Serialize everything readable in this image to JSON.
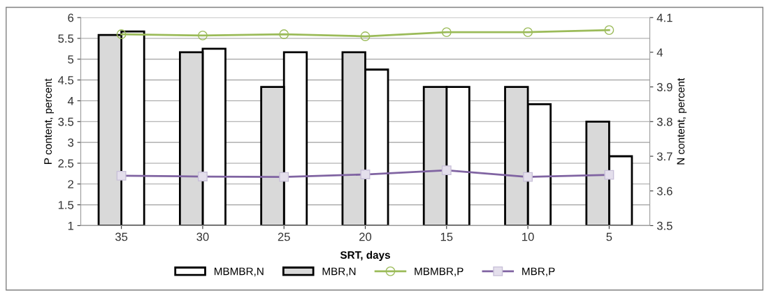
{
  "chart_data": {
    "type": "bar",
    "xlabel": "SRT, days",
    "ylabel": "P content, percent",
    "y2label": "N content, percent",
    "categories": [
      "35",
      "30",
      "25",
      "20",
      "15",
      "10",
      "5"
    ],
    "series": [
      {
        "name": "MBMBR,N",
        "axis": "y2",
        "color": "#ffffff",
        "values": [
          4.06,
          4.01,
          4.0,
          3.95,
          3.9,
          3.85,
          3.7
        ]
      },
      {
        "name": "MBR,N",
        "axis": "y2",
        "color": "#d9d9d9",
        "values": [
          4.05,
          4.0,
          3.9,
          4.0,
          3.9,
          3.9,
          3.8
        ]
      },
      {
        "name": "MBMBR,P",
        "type": "line",
        "color": "#9bbb59",
        "marker": "circle",
        "values": [
          5.6,
          5.57,
          5.6,
          5.55,
          5.65,
          5.65,
          5.7
        ]
      },
      {
        "name": "MBR,P",
        "type": "line",
        "color": "#8064a2",
        "marker": "square",
        "values": [
          2.2,
          2.18,
          2.17,
          2.23,
          2.33,
          2.17,
          2.22
        ]
      }
    ],
    "ylim": [
      1,
      6
    ],
    "yticks": [
      1,
      1.5,
      2,
      2.5,
      3,
      3.5,
      4,
      4.5,
      5,
      5.5,
      6
    ],
    "y2lim": [
      3.5,
      4.1
    ],
    "y2ticks": [
      3.5,
      3.6,
      3.7,
      3.8,
      3.9,
      4,
      4.1
    ],
    "grid": "y",
    "legend": "bottom"
  }
}
